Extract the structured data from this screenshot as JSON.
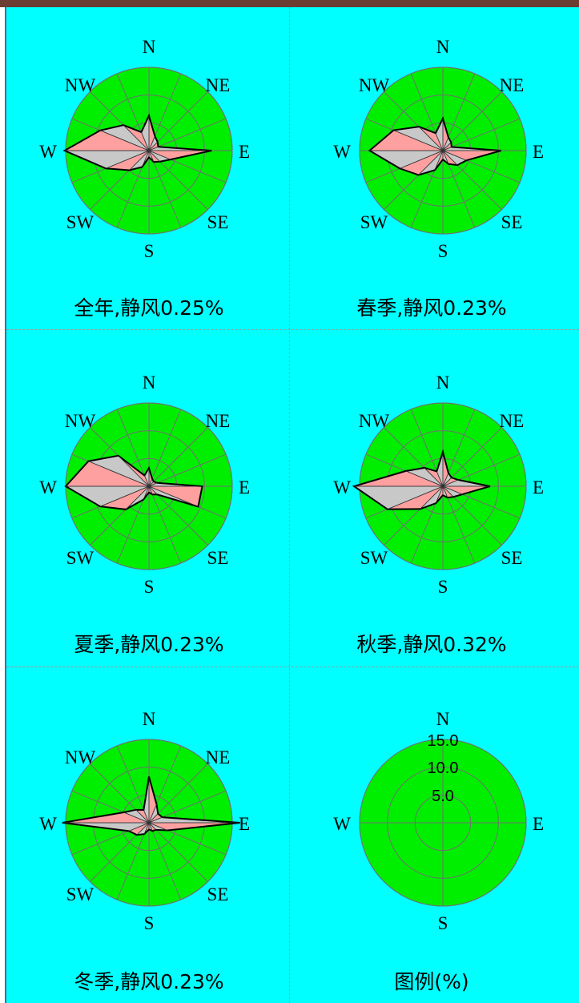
{
  "colors": {
    "background": "#00ffff",
    "disk": "#00ee00",
    "grid": "#707070",
    "rose_pink": "#ffa0a0",
    "rose_gray": "#c8c8c8",
    "outline": "#000000",
    "top_bar": "#6b3d33"
  },
  "chart_data": [
    {
      "type": "radar",
      "title": "全年,静风0.25%",
      "direction_labels": [
        "N",
        "NE",
        "E",
        "SE",
        "S",
        "SW",
        "W",
        "NW"
      ],
      "directions16": [
        "N",
        "NNE",
        "NE",
        "ENE",
        "E",
        "ESE",
        "SE",
        "SSE",
        "S",
        "SSW",
        "SW",
        "WSW",
        "W",
        "WNW",
        "NW",
        "NNW"
      ],
      "rmax": 15,
      "series": [
        {
          "values": [
            6.3,
            2.8,
            2.2,
            1.8,
            11.3,
            4.2,
            2.8,
            2.2,
            1.2,
            3.2,
            5.0,
            8.4,
            15.2,
            9.5,
            6.5,
            3.6
          ]
        }
      ]
    },
    {
      "type": "radar",
      "title": "春季,静风0.23%",
      "direction_labels": [
        "N",
        "NE",
        "E",
        "SE",
        "S",
        "SW",
        "W",
        "NW"
      ],
      "directions16": [
        "N",
        "NNE",
        "NE",
        "ENE",
        "E",
        "ESE",
        "SE",
        "SSE",
        "S",
        "SSW",
        "SW",
        "WSW",
        "W",
        "WNW",
        "NW",
        "NNW"
      ],
      "rmax": 15,
      "series": [
        {
          "values": [
            5.8,
            2.6,
            2.1,
            1.7,
            10.5,
            4.6,
            3.7,
            2.6,
            1.6,
            3.8,
            6.2,
            8.4,
            13.2,
            9.6,
            6.1,
            3.4
          ]
        }
      ]
    },
    {
      "type": "radar",
      "title": "夏季,静风0.23%",
      "direction_labels": [
        "N",
        "NE",
        "E",
        "SE",
        "S",
        "SW",
        "W",
        "NW"
      ],
      "directions16": [
        "N",
        "NNE",
        "NE",
        "ENE",
        "E",
        "ESE",
        "SE",
        "SSE",
        "S",
        "SSW",
        "SW",
        "WSW",
        "W",
        "WNW",
        "NW",
        "NNW"
      ],
      "rmax": 15,
      "series": [
        {
          "values": [
            3.3,
            1.5,
            1.2,
            1.6,
            9.6,
            9.6,
            2.1,
            1.6,
            1.1,
            2.6,
            5.9,
            9.5,
            15.0,
            11.8,
            7.8,
            2.1
          ]
        }
      ]
    },
    {
      "type": "radar",
      "title": "秋季,静风0.32%",
      "direction_labels": [
        "N",
        "NE",
        "E",
        "SE",
        "S",
        "SW",
        "W",
        "NW"
      ],
      "directions16": [
        "N",
        "NNE",
        "NE",
        "ENE",
        "E",
        "ESE",
        "SE",
        "SSE",
        "S",
        "SSW",
        "SW",
        "WSW",
        "W",
        "WNW",
        "NW",
        "NNW"
      ],
      "rmax": 15,
      "series": [
        {
          "values": [
            6.2,
            2.6,
            2.2,
            3.0,
            8.5,
            3.8,
            2.7,
            2.2,
            1.6,
            3.3,
            5.8,
            10.8,
            16.0,
            7.2,
            4.7,
            2.9
          ]
        }
      ]
    },
    {
      "type": "radar",
      "title": "冬季,静风0.23%",
      "direction_labels": [
        "N",
        "NE",
        "E",
        "SE",
        "S",
        "SW",
        "W",
        "NW"
      ],
      "directions16": [
        "N",
        "NNE",
        "NE",
        "ENE",
        "E",
        "ESE",
        "SE",
        "SSE",
        "S",
        "SSW",
        "SW",
        "WSW",
        "W",
        "WNW",
        "NW",
        "NNW"
      ],
      "rmax": 15,
      "series": [
        {
          "values": [
            8.3,
            3.6,
            2.3,
            2.6,
            16.4,
            3.6,
            1.8,
            1.6,
            1.2,
            2.2,
            3.1,
            3.9,
            15.6,
            4.9,
            3.3,
            2.5
          ]
        }
      ]
    },
    {
      "type": "legend",
      "title": "图例(%)",
      "direction_labels": [
        "N",
        "E",
        "S",
        "W"
      ],
      "ring_labels": [
        "15.0",
        "10.0",
        "5.0"
      ],
      "rings": [
        5,
        10,
        15
      ]
    }
  ]
}
